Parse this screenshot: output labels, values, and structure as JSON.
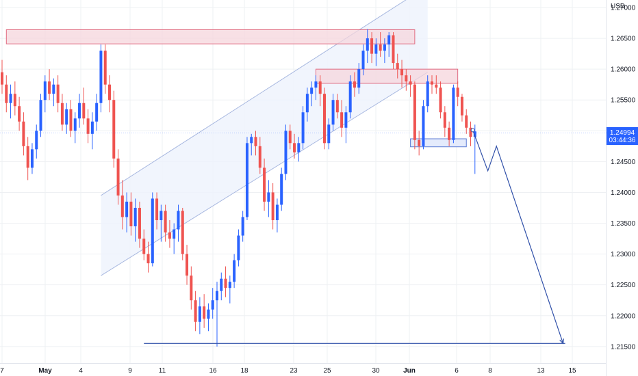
{
  "header": {
    "currency": "USD"
  },
  "price_tag": {
    "price": "1.24994",
    "countdown": "03:44:36",
    "color": "#2962ff"
  },
  "colors": {
    "up": "#2962ff",
    "down": "#ef5350",
    "zone_fill": "#f5d5dc",
    "zone_stroke": "#e06a80",
    "support_fill": "#dfe7fb",
    "support_stroke": "#5b7bd5",
    "channel_fill": "#eef3fc",
    "channel_stroke": "#a8b8e0",
    "projection": "#2f4fa8",
    "grid": "#eef0f3"
  },
  "chart_data": {
    "type": "candlestick",
    "ylim": [
      1.2125,
      1.2735
    ],
    "y_ticks": [
      "1.27000",
      "1.26500",
      "1.26000",
      "1.25500",
      "1.25000",
      "1.24500",
      "1.24000",
      "1.23500",
      "1.23000",
      "1.22500",
      "1.22000",
      "1.21500"
    ],
    "x_ticks": [
      {
        "label": "7",
        "bold": false
      },
      {
        "label": "May",
        "bold": true
      },
      {
        "label": "4",
        "bold": false
      },
      {
        "label": "9",
        "bold": false
      },
      {
        "label": "11",
        "bold": false
      },
      {
        "label": "16",
        "bold": false
      },
      {
        "label": "18",
        "bold": false
      },
      {
        "label": "23",
        "bold": false
      },
      {
        "label": "25",
        "bold": false
      },
      {
        "label": "30",
        "bold": false
      },
      {
        "label": "Jun",
        "bold": true
      },
      {
        "label": "6",
        "bold": false
      },
      {
        "label": "8",
        "bold": false
      },
      {
        "label": "13",
        "bold": false
      },
      {
        "label": "15",
        "bold": false
      }
    ],
    "candles": [
      [
        1.2595,
        1.2615,
        1.256,
        1.2575
      ],
      [
        1.2575,
        1.259,
        1.253,
        1.2545
      ],
      [
        1.2545,
        1.2575,
        1.252,
        1.256
      ],
      [
        1.256,
        1.258,
        1.2525,
        1.254
      ],
      [
        1.254,
        1.2555,
        1.25,
        1.2515
      ],
      [
        1.2515,
        1.253,
        1.246,
        1.2475
      ],
      [
        1.2475,
        1.249,
        1.242,
        1.244
      ],
      [
        1.244,
        1.248,
        1.243,
        1.247
      ],
      [
        1.247,
        1.251,
        1.2455,
        1.25
      ],
      [
        1.25,
        1.256,
        1.249,
        1.255
      ],
      [
        1.255,
        1.259,
        1.253,
        1.258
      ],
      [
        1.258,
        1.26,
        1.255,
        1.256
      ],
      [
        1.256,
        1.2585,
        1.254,
        1.2575
      ],
      [
        1.2575,
        1.259,
        1.253,
        1.2545
      ],
      [
        1.2545,
        1.256,
        1.25,
        1.251
      ],
      [
        1.251,
        1.2545,
        1.2495,
        1.2535
      ],
      [
        1.2535,
        1.255,
        1.249,
        1.25
      ],
      [
        1.25,
        1.253,
        1.248,
        1.252
      ],
      [
        1.252,
        1.256,
        1.2505,
        1.2545
      ],
      [
        1.2545,
        1.257,
        1.251,
        1.252
      ],
      [
        1.252,
        1.2535,
        1.248,
        1.2495
      ],
      [
        1.2495,
        1.253,
        1.247,
        1.2515
      ],
      [
        1.2515,
        1.256,
        1.25,
        1.2545
      ],
      [
        1.2545,
        1.264,
        1.253,
        1.263
      ],
      [
        1.263,
        1.264,
        1.256,
        1.2575
      ],
      [
        1.2575,
        1.259,
        1.253,
        1.255
      ],
      [
        1.255,
        1.2565,
        1.244,
        1.2455
      ],
      [
        1.2455,
        1.247,
        1.238,
        1.2395
      ],
      [
        1.2395,
        1.242,
        1.234,
        1.236
      ],
      [
        1.236,
        1.24,
        1.2335,
        1.2385
      ],
      [
        1.2385,
        1.24,
        1.233,
        1.2345
      ],
      [
        1.2345,
        1.239,
        1.232,
        1.2375
      ],
      [
        1.2375,
        1.2385,
        1.231,
        1.2325
      ],
      [
        1.2325,
        1.234,
        1.229,
        1.23
      ],
      [
        1.23,
        1.232,
        1.227,
        1.2285
      ],
      [
        1.2285,
        1.24,
        1.228,
        1.239
      ],
      [
        1.239,
        1.24,
        1.234,
        1.2355
      ],
      [
        1.2355,
        1.238,
        1.232,
        1.237
      ],
      [
        1.237,
        1.238,
        1.232,
        1.2335
      ],
      [
        1.2335,
        1.2355,
        1.231,
        1.2325
      ],
      [
        1.2325,
        1.235,
        1.23,
        1.234
      ],
      [
        1.234,
        1.238,
        1.232,
        1.237
      ],
      [
        1.237,
        1.2375,
        1.229,
        1.23
      ],
      [
        1.23,
        1.2315,
        1.225,
        1.2265
      ],
      [
        1.2265,
        1.228,
        1.221,
        1.2225
      ],
      [
        1.2225,
        1.224,
        1.2175,
        1.219
      ],
      [
        1.219,
        1.223,
        1.217,
        1.2215
      ],
      [
        1.2215,
        1.2235,
        1.218,
        1.2195
      ],
      [
        1.2195,
        1.222,
        1.2175,
        1.221
      ],
      [
        1.221,
        1.2245,
        1.2195,
        1.2225
      ],
      [
        1.2225,
        1.2255,
        1.215,
        1.224
      ],
      [
        1.224,
        1.227,
        1.2225,
        1.226
      ],
      [
        1.226,
        1.228,
        1.223,
        1.2245
      ],
      [
        1.2245,
        1.2265,
        1.222,
        1.2255
      ],
      [
        1.2255,
        1.23,
        1.2245,
        1.229
      ],
      [
        1.229,
        1.234,
        1.228,
        1.233
      ],
      [
        1.233,
        1.237,
        1.232,
        1.236
      ],
      [
        1.236,
        1.249,
        1.2355,
        1.248
      ],
      [
        1.248,
        1.2495,
        1.246,
        1.249
      ],
      [
        1.249,
        1.25,
        1.246,
        1.2475
      ],
      [
        1.2475,
        1.249,
        1.243,
        1.244
      ],
      [
        1.244,
        1.2455,
        1.237,
        1.2385
      ],
      [
        1.2385,
        1.242,
        1.236,
        1.24
      ],
      [
        1.24,
        1.2415,
        1.234,
        1.2355
      ],
      [
        1.2355,
        1.239,
        1.2335,
        1.238
      ],
      [
        1.238,
        1.244,
        1.237,
        1.243
      ],
      [
        1.243,
        1.251,
        1.242,
        1.25
      ],
      [
        1.25,
        1.251,
        1.247,
        1.248
      ],
      [
        1.248,
        1.2495,
        1.2455,
        1.2465
      ],
      [
        1.2465,
        1.249,
        1.245,
        1.248
      ],
      [
        1.248,
        1.254,
        1.247,
        1.253
      ],
      [
        1.253,
        1.257,
        1.2515,
        1.256
      ],
      [
        1.256,
        1.258,
        1.254,
        1.257
      ],
      [
        1.257,
        1.259,
        1.255,
        1.258
      ],
      [
        1.258,
        1.259,
        1.254,
        1.256
      ],
      [
        1.256,
        1.257,
        1.247,
        1.248
      ],
      [
        1.248,
        1.252,
        1.247,
        1.251
      ],
      [
        1.251,
        1.256,
        1.25,
        1.255
      ],
      [
        1.255,
        1.256,
        1.252,
        1.253
      ],
      [
        1.253,
        1.255,
        1.249,
        1.2505
      ],
      [
        1.2505,
        1.254,
        1.248,
        1.253
      ],
      [
        1.253,
        1.259,
        1.252,
        1.258
      ],
      [
        1.258,
        1.2595,
        1.2555,
        1.257
      ],
      [
        1.257,
        1.261,
        1.256,
        1.26
      ],
      [
        1.26,
        1.264,
        1.259,
        1.263
      ],
      [
        1.263,
        1.2665,
        1.261,
        1.265
      ],
      [
        1.265,
        1.266,
        1.261,
        1.2625
      ],
      [
        1.2625,
        1.265,
        1.2605,
        1.264
      ],
      [
        1.264,
        1.266,
        1.262,
        1.263
      ],
      [
        1.263,
        1.265,
        1.261,
        1.264
      ],
      [
        1.264,
        1.266,
        1.262,
        1.2655
      ],
      [
        1.2655,
        1.266,
        1.26,
        1.261
      ],
      [
        1.261,
        1.2625,
        1.2585,
        1.26
      ],
      [
        1.26,
        1.2615,
        1.257,
        1.259
      ],
      [
        1.259,
        1.26,
        1.2565,
        1.258
      ],
      [
        1.258,
        1.259,
        1.2555,
        1.2575
      ],
      [
        1.2575,
        1.258,
        1.247,
        1.2485
      ],
      [
        1.2485,
        1.25,
        1.246,
        1.2475
      ],
      [
        1.2475,
        1.255,
        1.247,
        1.254
      ],
      [
        1.254,
        1.259,
        1.253,
        1.258
      ],
      [
        1.258,
        1.259,
        1.256,
        1.2575
      ],
      [
        1.2575,
        1.259,
        1.256,
        1.257
      ],
      [
        1.257,
        1.258,
        1.252,
        1.253
      ],
      [
        1.253,
        1.254,
        1.249,
        1.2505
      ],
      [
        1.2505,
        1.2515,
        1.2475,
        1.2485
      ],
      [
        1.2485,
        1.2575,
        1.248,
        1.257
      ],
      [
        1.257,
        1.258,
        1.254,
        1.2555
      ],
      [
        1.2555,
        1.256,
        1.2515,
        1.2525
      ],
      [
        1.2525,
        1.2535,
        1.2495,
        1.2505
      ],
      [
        1.2505,
        1.2515,
        1.2475,
        1.249
      ],
      [
        1.249,
        1.251,
        1.243,
        1.2499
      ]
    ],
    "resistance_zones": [
      {
        "x0": 1,
        "x1": 96,
        "y0": 1.2641,
        "y1": 1.2664
      },
      {
        "x0": 73,
        "x1": 106,
        "y0": 1.2577,
        "y1": 1.26
      }
    ],
    "support_zone": {
      "x0": 95,
      "x1": 108,
      "y0": 1.2474,
      "y1": 1.2487
    },
    "channel": {
      "lower": [
        [
          23,
          1.2265
        ],
        [
          99,
          1.2595
        ]
      ],
      "upper": [
        [
          23,
          1.2395
        ],
        [
          99,
          1.2735
        ]
      ]
    },
    "target_line": {
      "x0": 33,
      "x1": 131,
      "y": 1.2155
    },
    "projection": [
      [
        109.5,
        1.2501
      ],
      [
        113,
        1.2435
      ],
      [
        115,
        1.2475
      ],
      [
        130.5,
        1.2155
      ]
    ]
  }
}
